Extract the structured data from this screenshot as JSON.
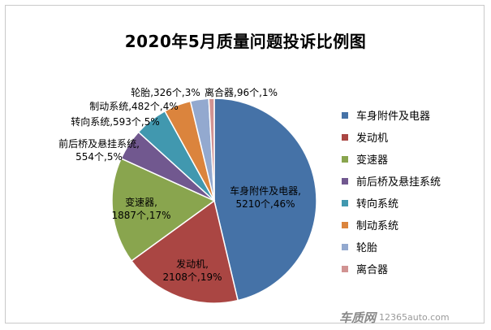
{
  "chart_data": {
    "type": "pie",
    "title": "2020年5月质量问题投诉比例图",
    "categories": [
      "车身附件及电器",
      "发动机",
      "变速器",
      "前后桥及悬挂系统",
      "转向系统",
      "制动系统",
      "轮胎",
      "离合器"
    ],
    "values": [
      5210,
      2108,
      1887,
      554,
      593,
      482,
      326,
      96
    ],
    "percents": [
      "46%",
      "19%",
      "17%",
      "5%",
      "5%",
      "4%",
      "3%",
      "1%"
    ],
    "data_labels": [
      [
        "车身附件及电器,",
        "5210个,46%"
      ],
      [
        "发动机,",
        "2108个,19%"
      ],
      [
        "变速器,",
        "1887个,17%"
      ],
      [
        "前后桥及悬挂系统,",
        "554个,5%"
      ],
      [
        "转向系统,593个,5%"
      ],
      [
        "制动系统,482个,4%"
      ],
      [
        "轮胎,326个,3%"
      ],
      [
        "离合器,96个,1%"
      ]
    ],
    "colors": [
      "#4572A7",
      "#AA4643",
      "#89A54E",
      "#71588F",
      "#4198AF",
      "#DB843D",
      "#93A9CF",
      "#D19392"
    ],
    "legend_position": "right"
  },
  "watermark": {
    "brand": "车质网",
    "url": "12365auto.com"
  }
}
